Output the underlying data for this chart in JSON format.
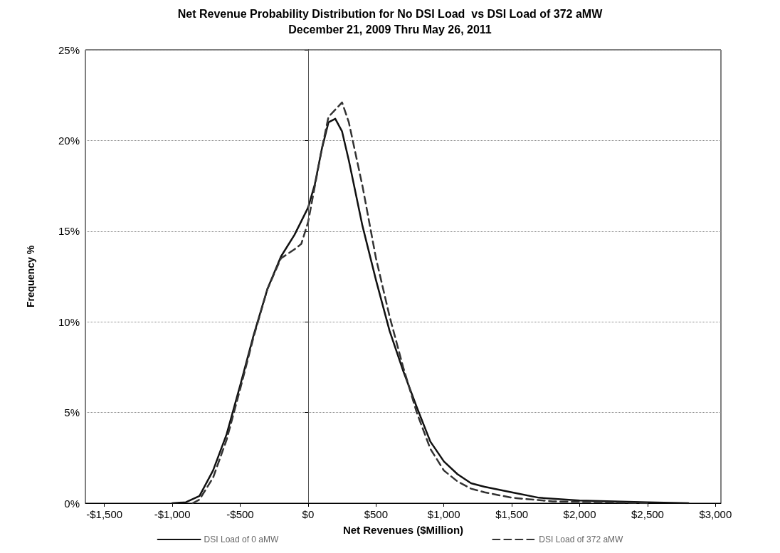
{
  "chart_data": {
    "type": "line",
    "title": "Net Revenue Probability Distribution for No DSI Load  vs DSI Load of 372 aMW",
    "subtitle": "December 21, 2009 Thru May 26, 2011",
    "xlabel": "Net Revenues ($Million)",
    "ylabel": "Frequency %",
    "xlim": [
      -1640,
      3040
    ],
    "xticks": [
      {
        "value": -1500,
        "label": "-$1,500"
      },
      {
        "value": -1000,
        "label": "-$1,000"
      },
      {
        "value": -500,
        "label": "-$500"
      },
      {
        "value": 0,
        "label": "$0"
      },
      {
        "value": 500,
        "label": "$500"
      },
      {
        "value": 1000,
        "label": "$1,000"
      },
      {
        "value": 1500,
        "label": "$1,500"
      },
      {
        "value": 2000,
        "label": "$2,000"
      },
      {
        "value": 2500,
        "label": "$2,500"
      },
      {
        "value": 3000,
        "label": "$3,000"
      }
    ],
    "ylim": [
      0,
      25
    ],
    "yticks": [
      {
        "value": 0,
        "label": "0%"
      },
      {
        "value": 5,
        "label": "5%"
      },
      {
        "value": 10,
        "label": "10%"
      },
      {
        "value": 15,
        "label": "15%"
      },
      {
        "value": 20,
        "label": "20%"
      },
      {
        "value": 25,
        "label": "25%"
      }
    ],
    "grid": "y",
    "legend": "bottom",
    "marker": "none",
    "ref_lines": [
      {
        "axis": "x",
        "value": 0,
        "color": "#555555"
      }
    ],
    "series": [
      {
        "name": "DSI Load of 0 aMW",
        "color": "#111111",
        "line_style": "solid",
        "x": [
          -1000,
          -900,
          -800,
          -700,
          -600,
          -500,
          -400,
          -300,
          -200,
          -100,
          0,
          50,
          100,
          150,
          200,
          250,
          300,
          400,
          500,
          600,
          700,
          800,
          900,
          1000,
          1100,
          1200,
          1300,
          1500,
          1700,
          2000,
          2500,
          2800
        ],
        "values": [
          0,
          0.05,
          0.4,
          1.8,
          3.8,
          6.5,
          9.3,
          11.8,
          13.6,
          14.8,
          16.3,
          17.6,
          19.5,
          21.0,
          21.2,
          20.5,
          18.9,
          15.3,
          12.3,
          9.5,
          7.3,
          5.3,
          3.4,
          2.3,
          1.6,
          1.1,
          0.9,
          0.6,
          0.3,
          0.15,
          0.05,
          0
        ]
      },
      {
        "name": "DSI Load of 372 aMW",
        "color": "#333333",
        "line_style": "dashed",
        "x": [
          -850,
          -800,
          -700,
          -600,
          -500,
          -400,
          -300,
          -200,
          -100,
          -50,
          0,
          50,
          100,
          150,
          200,
          250,
          300,
          400,
          500,
          600,
          700,
          800,
          900,
          1000,
          1100,
          1200,
          1300,
          1500,
          1800,
          2200,
          2500
        ],
        "values": [
          0,
          0.2,
          1.4,
          3.5,
          6.3,
          9.2,
          11.8,
          13.5,
          14.0,
          14.3,
          15.5,
          17.5,
          19.5,
          21.3,
          21.7,
          22.1,
          21.0,
          17.5,
          13.5,
          10.3,
          7.5,
          5.0,
          3.0,
          1.8,
          1.2,
          0.8,
          0.6,
          0.3,
          0.1,
          0.05,
          0
        ]
      }
    ]
  }
}
